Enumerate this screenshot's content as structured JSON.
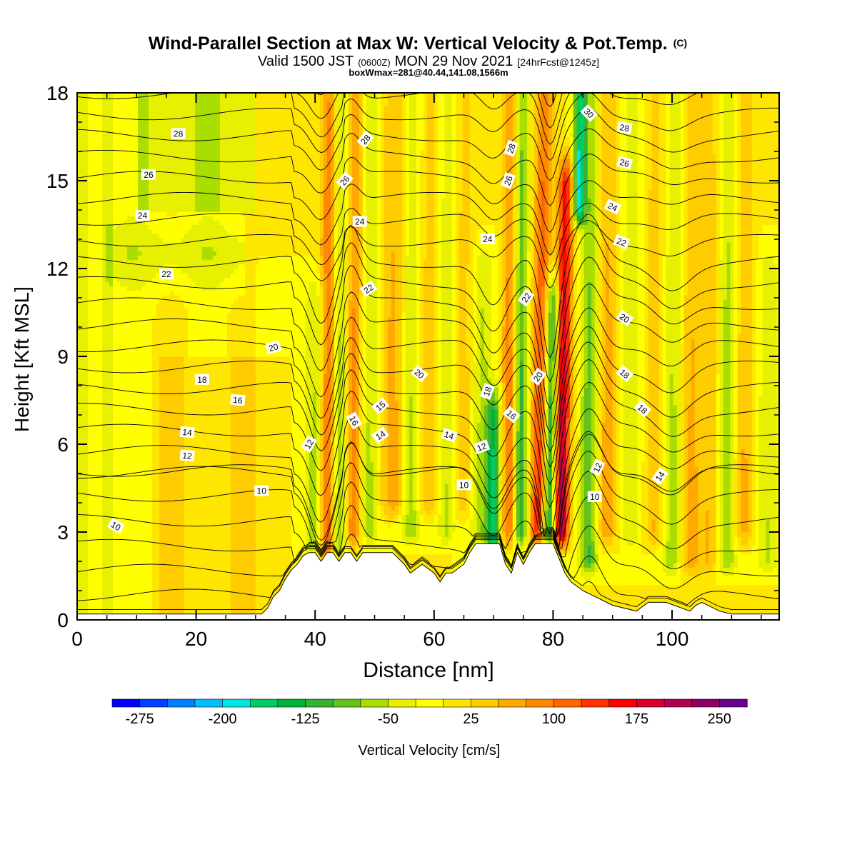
{
  "chart_data": {
    "type": "heatmap",
    "title": "Wind-Parallel Section at Max W: Vertical Velocity & Pot.Temp.",
    "title_mark": "(C)",
    "subtitle": {
      "valid_prefix": "Valid 1500 JST",
      "valid_utc": "(0600Z)",
      "valid_date": "MON 29 Nov 2021",
      "forecast": "[24hrFcst@1245z]"
    },
    "box_info": "boxWmax=281@40.44,141.08,1566m",
    "xlabel": "Distance [nm]",
    "ylabel": "Height [Kft MSL]",
    "xlim": [
      0,
      118
    ],
    "ylim": [
      0,
      18
    ],
    "x_ticks": [
      0,
      20,
      40,
      60,
      80,
      100
    ],
    "y_ticks": [
      0,
      3,
      6,
      9,
      12,
      15,
      18
    ],
    "colorbar": {
      "label": "Vertical Velocity [cm/s]",
      "min": -300,
      "step": 25,
      "tick_labels": [
        "-275",
        "-200",
        "-125",
        "-50",
        "25",
        "100",
        "175",
        "250"
      ],
      "colors": [
        "#0000ff",
        "#0040ff",
        "#0080ff",
        "#00bfff",
        "#00e6e6",
        "#00cc66",
        "#00b33c",
        "#33b233",
        "#66c21a",
        "#aadd00",
        "#e6f000",
        "#ffff00",
        "#ffe600",
        "#ffcc00",
        "#ffaa00",
        "#ff8800",
        "#ff6600",
        "#ff3300",
        "#ff0000",
        "#d9002b",
        "#b3004d",
        "#8c0066",
        "#66008c"
      ]
    },
    "vertical_velocity_features": [
      {
        "x": 40,
        "w": 1.7,
        "amp": -75,
        "zmin": 2.5,
        "zmax": 11
      },
      {
        "x": 42,
        "w": 1.4,
        "amp": 140,
        "zmin": 2.5,
        "zmax": 18
      },
      {
        "x": 44,
        "w": 1.2,
        "amp": -90,
        "zmin": 2.5,
        "zmax": 18
      },
      {
        "x": 46.5,
        "w": 1.4,
        "amp": 110,
        "zmin": 3,
        "zmax": 18
      },
      {
        "x": 49,
        "w": 1.6,
        "amp": -70,
        "zmin": 3,
        "zmax": 18
      },
      {
        "x": 53,
        "w": 2.2,
        "amp": 75,
        "zmin": 4,
        "zmax": 18
      },
      {
        "x": 56,
        "w": 1.6,
        "amp": -75,
        "zmin": 3,
        "zmax": 18
      },
      {
        "x": 59,
        "w": 1.6,
        "amp": 55,
        "zmin": 4,
        "zmax": 18
      },
      {
        "x": 62,
        "w": 1.5,
        "amp": -60,
        "zmin": 3,
        "zmax": 18
      },
      {
        "x": 65,
        "w": 1.6,
        "amp": 55,
        "zmin": 4,
        "zmax": 18
      },
      {
        "x": 68,
        "w": 2.0,
        "amp": -70,
        "zmin": 3,
        "zmax": 12
      },
      {
        "x": 70,
        "w": 1.2,
        "amp": -150,
        "zmin": 2.5,
        "zmax": 7
      },
      {
        "x": 72.5,
        "w": 1.3,
        "amp": 120,
        "zmin": 3,
        "zmax": 18
      },
      {
        "x": 74.5,
        "w": 1.2,
        "amp": -140,
        "zmin": 3,
        "zmax": 18
      },
      {
        "x": 77.5,
        "w": 1.5,
        "amp": 160,
        "zmin": 3,
        "zmax": 18
      },
      {
        "x": 79.3,
        "w": 1.1,
        "amp": -190,
        "zmin": 3,
        "zmax": 11
      },
      {
        "x": 81.3,
        "w": 1.3,
        "amp": 250,
        "zmin": 3,
        "zmax": 15
      },
      {
        "x": 83.5,
        "w": 1.0,
        "amp": -280,
        "zmin": 14,
        "zmax": 18
      },
      {
        "x": 86,
        "w": 1.6,
        "amp": -110,
        "zmin": 2,
        "zmax": 18
      },
      {
        "x": 89,
        "w": 1.8,
        "amp": 80,
        "zmin": 3,
        "zmax": 18
      },
      {
        "x": 93,
        "w": 2.2,
        "amp": -55,
        "zmin": 3,
        "zmax": 18
      },
      {
        "x": 97,
        "w": 2.0,
        "amp": 60,
        "zmin": 3,
        "zmax": 18
      },
      {
        "x": 100,
        "w": 1.7,
        "amp": -75,
        "zmin": 2,
        "zmax": 18
      },
      {
        "x": 103,
        "w": 1.7,
        "amp": 65,
        "zmin": 2,
        "zmax": 18
      },
      {
        "x": 106.5,
        "w": 2.0,
        "amp": 60,
        "zmin": 2,
        "zmax": 18
      },
      {
        "x": 109,
        "w": 1.7,
        "amp": -90,
        "zmin": 2,
        "zmax": 18
      },
      {
        "x": 112,
        "w": 1.7,
        "amp": 65,
        "zmin": 3,
        "zmax": 18
      },
      {
        "x": 116,
        "w": 1.8,
        "amp": -55,
        "zmin": 2,
        "zmax": 12
      }
    ],
    "terrain": {
      "x": [
        0,
        5,
        31,
        32,
        33,
        34,
        35,
        36,
        37,
        38,
        39,
        40,
        41,
        42,
        43,
        44,
        45,
        46,
        47,
        48,
        50,
        53,
        55,
        56,
        58,
        60,
        61,
        62,
        63,
        65,
        66,
        67,
        71,
        72,
        73,
        74,
        75,
        76,
        77,
        80,
        81,
        82,
        83,
        85,
        87,
        90,
        94,
        96,
        99,
        103,
        104,
        105,
        108,
        110,
        118
      ],
      "height": [
        0.2,
        0.2,
        0.2,
        0.4,
        0.8,
        1.0,
        1.4,
        1.7,
        1.9,
        2.2,
        2.3,
        2.3,
        2.0,
        2.3,
        2.3,
        2.0,
        2.3,
        2.3,
        2.0,
        2.3,
        2.3,
        2.3,
        1.9,
        1.6,
        1.9,
        1.6,
        1.3,
        1.6,
        1.6,
        1.9,
        2.3,
        2.6,
        2.6,
        1.9,
        1.6,
        2.3,
        1.9,
        2.3,
        2.6,
        2.6,
        2.1,
        1.6,
        1.3,
        1.0,
        0.8,
        0.5,
        0.3,
        0.6,
        0.6,
        0.3,
        0.5,
        0.6,
        0.3,
        0.2,
        0.2
      ]
    },
    "potential_temperature_contours": {
      "levels": [
        4,
        5,
        6,
        7,
        8,
        9,
        10,
        11,
        12,
        13,
        14,
        15,
        16,
        17,
        18,
        19,
        20,
        21,
        22,
        23,
        24,
        25,
        26,
        27,
        28,
        29,
        30,
        31
      ],
      "labels": [
        {
          "text": "10",
          "x": 6.5,
          "z": 3.2,
          "angle": -30
        },
        {
          "text": "10",
          "x": 31,
          "z": 4.4,
          "angle": 0
        },
        {
          "text": "10",
          "x": 65,
          "z": 4.6,
          "angle": 0
        },
        {
          "text": "10",
          "x": 87,
          "z": 4.2,
          "angle": 0
        },
        {
          "text": "12",
          "x": 18.5,
          "z": 5.6,
          "angle": -5
        },
        {
          "text": "12",
          "x": 39,
          "z": 6.0,
          "angle": 60
        },
        {
          "text": "12",
          "x": 68,
          "z": 5.9,
          "angle": 20
        },
        {
          "text": "12",
          "x": 87.5,
          "z": 5.2,
          "angle": 65
        },
        {
          "text": "14",
          "x": 18.5,
          "z": 6.4,
          "angle": -5
        },
        {
          "text": "14",
          "x": 51,
          "z": 6.3,
          "angle": 35
        },
        {
          "text": "14",
          "x": 62.5,
          "z": 6.3,
          "angle": -20
        },
        {
          "text": "14",
          "x": 98,
          "z": 4.9,
          "angle": 55
        },
        {
          "text": "15",
          "x": 51,
          "z": 7.3,
          "angle": 40
        },
        {
          "text": "16",
          "x": 27,
          "z": 7.5,
          "angle": -5
        },
        {
          "text": "16",
          "x": 46.5,
          "z": 6.8,
          "angle": -60
        },
        {
          "text": "16",
          "x": 73,
          "z": 7.0,
          "angle": -40
        },
        {
          "text": "18",
          "x": 21,
          "z": 8.2,
          "angle": 0
        },
        {
          "text": "18",
          "x": 69,
          "z": 7.8,
          "angle": 70
        },
        {
          "text": "18",
          "x": 92,
          "z": 8.4,
          "angle": -40
        },
        {
          "text": "18",
          "x": 95,
          "z": 7.2,
          "angle": -40
        },
        {
          "text": "20",
          "x": 33,
          "z": 9.3,
          "angle": 15
        },
        {
          "text": "20",
          "x": 57.5,
          "z": 8.4,
          "angle": -40
        },
        {
          "text": "20",
          "x": 77.5,
          "z": 8.3,
          "angle": 55
        },
        {
          "text": "20",
          "x": 92,
          "z": 10.3,
          "angle": -35
        },
        {
          "text": "22",
          "x": 15,
          "z": 11.8,
          "angle": 0
        },
        {
          "text": "22",
          "x": 49,
          "z": 11.3,
          "angle": 35
        },
        {
          "text": "22",
          "x": 75.5,
          "z": 11.0,
          "angle": 55
        },
        {
          "text": "22",
          "x": 91.5,
          "z": 12.9,
          "angle": -20
        },
        {
          "text": "24",
          "x": 11,
          "z": 13.8,
          "angle": 0
        },
        {
          "text": "24",
          "x": 47.5,
          "z": 13.6,
          "angle": 0
        },
        {
          "text": "24",
          "x": 69,
          "z": 13.0,
          "angle": 0
        },
        {
          "text": "24",
          "x": 90,
          "z": 14.1,
          "angle": -25
        },
        {
          "text": "26",
          "x": 12,
          "z": 15.2,
          "angle": 0
        },
        {
          "text": "26",
          "x": 45,
          "z": 15.0,
          "angle": 50
        },
        {
          "text": "26",
          "x": 72.5,
          "z": 15.0,
          "angle": 70
        },
        {
          "text": "26",
          "x": 92,
          "z": 15.6,
          "angle": -15
        },
        {
          "text": "28",
          "x": 17,
          "z": 16.6,
          "angle": 0
        },
        {
          "text": "28",
          "x": 48.5,
          "z": 16.4,
          "angle": 50
        },
        {
          "text": "28",
          "x": 73,
          "z": 16.1,
          "angle": 70
        },
        {
          "text": "28",
          "x": 92,
          "z": 16.8,
          "angle": -10
        },
        {
          "text": "30",
          "x": 86,
          "z": 17.3,
          "angle": -45
        }
      ]
    },
    "legend_placement": "bottom",
    "grid": false
  }
}
